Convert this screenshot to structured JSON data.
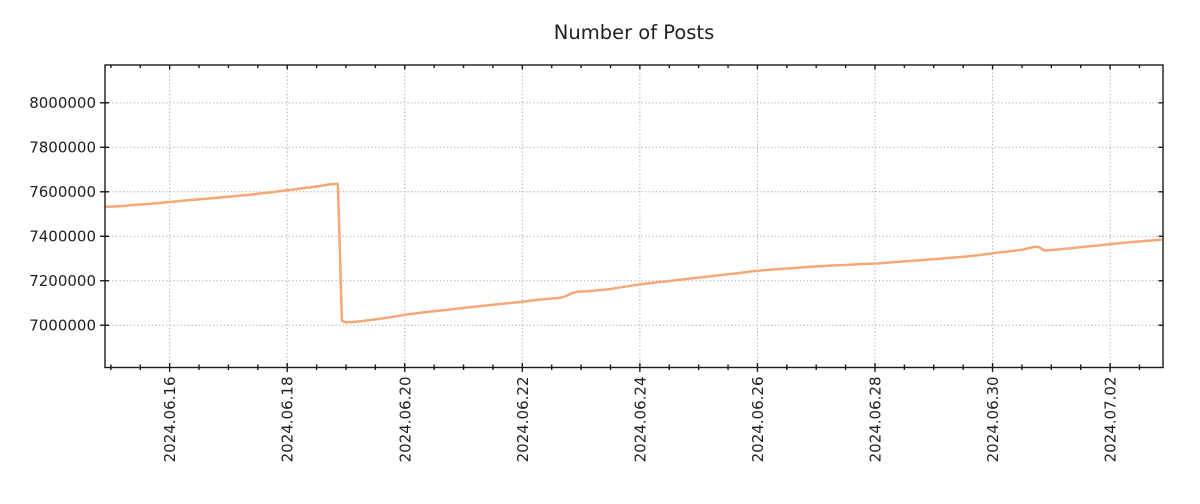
{
  "colors": {
    "line": "#f4a878",
    "grid": "#ababab",
    "axis": "#1a1a1a",
    "text": "#212121",
    "background": "#ffffff"
  },
  "chart_data": {
    "type": "line",
    "title": "Number of Posts",
    "xlabel": "",
    "ylabel": "",
    "grid": true,
    "legend": false,
    "x_axis": {
      "note": "x encoded as day index: 16 = 2024.06.16, 32 = 2024.07.02",
      "xlim": [
        14.9,
        32.9
      ],
      "tick_values": [
        16,
        18,
        20,
        22,
        24,
        26,
        28,
        30,
        32
      ],
      "tick_labels": [
        "2024.06.16",
        "2024.06.18",
        "2024.06.20",
        "2024.06.22",
        "2024.06.24",
        "2024.06.26",
        "2024.06.28",
        "2024.06.30",
        "2024.07.02"
      ],
      "tick_label_rotation": 90,
      "minor_tick_step": 0.5
    },
    "y_axis": {
      "ylim": [
        6810000,
        8170000
      ],
      "tick_values": [
        7000000,
        7200000,
        7400000,
        7600000,
        7800000,
        8000000
      ],
      "tick_labels": [
        "7000000",
        "7200000",
        "7400000",
        "7600000",
        "7800000",
        "8000000"
      ]
    },
    "series": [
      {
        "name": "number-of-posts",
        "color": "#f4a878",
        "points": [
          [
            14.9,
            7533000
          ],
          [
            15.05,
            7534000
          ],
          [
            15.2,
            7536000
          ],
          [
            15.35,
            7540000
          ],
          [
            15.5,
            7543000
          ],
          [
            15.65,
            7545000
          ],
          [
            15.8,
            7549000
          ],
          [
            16.0,
            7554000
          ],
          [
            16.2,
            7559000
          ],
          [
            16.4,
            7564000
          ],
          [
            16.6,
            7568000
          ],
          [
            16.8,
            7573000
          ],
          [
            17.0,
            7578000
          ],
          [
            17.2,
            7583000
          ],
          [
            17.4,
            7588000
          ],
          [
            17.6,
            7594000
          ],
          [
            17.8,
            7600000
          ],
          [
            18.0,
            7607000
          ],
          [
            18.15,
            7612000
          ],
          [
            18.3,
            7617000
          ],
          [
            18.45,
            7622000
          ],
          [
            18.6,
            7628000
          ],
          [
            18.72,
            7633000
          ],
          [
            18.8,
            7635000
          ],
          [
            18.86,
            7636000
          ],
          [
            18.9,
            7300000
          ],
          [
            18.93,
            7020000
          ],
          [
            19.0,
            7013000
          ],
          [
            19.1,
            7014000
          ],
          [
            19.25,
            7018000
          ],
          [
            19.4,
            7023000
          ],
          [
            19.6,
            7030000
          ],
          [
            19.8,
            7038000
          ],
          [
            20.0,
            7047000
          ],
          [
            20.2,
            7054000
          ],
          [
            20.4,
            7060000
          ],
          [
            20.6,
            7066000
          ],
          [
            20.8,
            7072000
          ],
          [
            21.0,
            7078000
          ],
          [
            21.2,
            7084000
          ],
          [
            21.4,
            7089000
          ],
          [
            21.6,
            7095000
          ],
          [
            21.8,
            7100000
          ],
          [
            22.0,
            7106000
          ],
          [
            22.2,
            7112000
          ],
          [
            22.4,
            7118000
          ],
          [
            22.6,
            7122000
          ],
          [
            22.7,
            7127000
          ],
          [
            22.78,
            7136000
          ],
          [
            22.86,
            7146000
          ],
          [
            22.95,
            7151000
          ],
          [
            23.1,
            7153000
          ],
          [
            23.3,
            7157000
          ],
          [
            23.5,
            7163000
          ],
          [
            23.7,
            7171000
          ],
          [
            23.9,
            7180000
          ],
          [
            24.1,
            7187000
          ],
          [
            24.3,
            7193000
          ],
          [
            24.5,
            7199000
          ],
          [
            24.7,
            7205000
          ],
          [
            24.9,
            7211000
          ],
          [
            25.1,
            7217000
          ],
          [
            25.3,
            7223000
          ],
          [
            25.5,
            7229000
          ],
          [
            25.7,
            7235000
          ],
          [
            25.9,
            7242000
          ],
          [
            26.1,
            7247000
          ],
          [
            26.3,
            7251000
          ],
          [
            26.5,
            7255000
          ],
          [
            26.7,
            7259000
          ],
          [
            26.9,
            7263000
          ],
          [
            27.1,
            7266000
          ],
          [
            27.3,
            7269000
          ],
          [
            27.5,
            7271000
          ],
          [
            27.7,
            7274000
          ],
          [
            27.9,
            7276000
          ],
          [
            28.1,
            7279000
          ],
          [
            28.3,
            7283000
          ],
          [
            28.5,
            7287000
          ],
          [
            28.7,
            7291000
          ],
          [
            28.9,
            7295000
          ],
          [
            29.1,
            7299000
          ],
          [
            29.3,
            7303000
          ],
          [
            29.5,
            7308000
          ],
          [
            29.7,
            7313000
          ],
          [
            29.9,
            7320000
          ],
          [
            30.1,
            7327000
          ],
          [
            30.3,
            7333000
          ],
          [
            30.5,
            7339000
          ],
          [
            30.65,
            7349000
          ],
          [
            30.72,
            7353000
          ],
          [
            30.8,
            7350000
          ],
          [
            30.88,
            7336000
          ],
          [
            31.0,
            7338000
          ],
          [
            31.15,
            7342000
          ],
          [
            31.35,
            7347000
          ],
          [
            31.55,
            7352000
          ],
          [
            31.75,
            7357000
          ],
          [
            31.95,
            7363000
          ],
          [
            32.15,
            7369000
          ],
          [
            32.35,
            7374000
          ],
          [
            32.55,
            7378000
          ],
          [
            32.75,
            7382000
          ],
          [
            32.88,
            7385000
          ]
        ]
      }
    ]
  }
}
